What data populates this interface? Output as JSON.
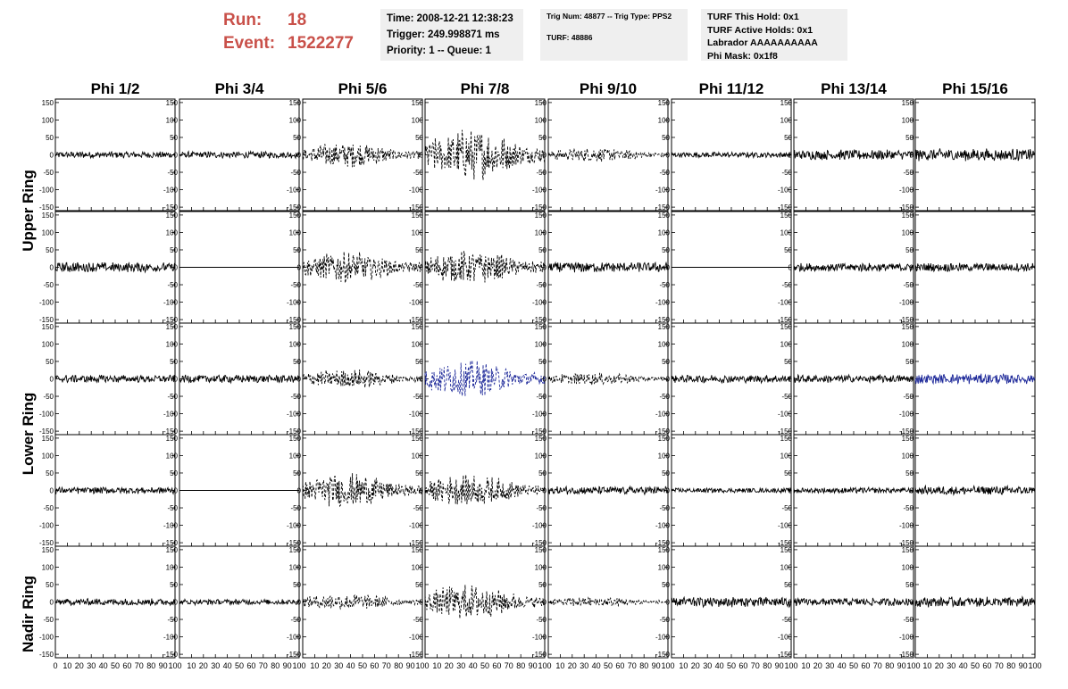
{
  "header": {
    "run_label": "Run:",
    "run_value": "18",
    "event_label": "Event:",
    "event_value": "1522277",
    "info1": [
      "Time: 2008-12-21 12:38:23",
      "Trigger: 249.998871 ms",
      "Priority: 1 -- Queue: 1"
    ],
    "info2": [
      "Trig Num: 48877 -- Trig Type: PPS2",
      "TURF: 48886"
    ],
    "info3": [
      "TURF This Hold: 0x1",
      "TURF Active Holds: 0x1",
      "Labrador AAAAAAAAAA",
      "Phi Mask: 0x1f8"
    ]
  },
  "colors": {
    "run_text": "#c9514a",
    "info_bg": "#efefef",
    "trace": "#000000",
    "highlight_trace": "#1f2a9a"
  },
  "chart_data": {
    "type": "line",
    "columns": [
      "Phi 1/2",
      "Phi 3/4",
      "Phi 5/6",
      "Phi 7/8",
      "Phi 9/10",
      "Phi 11/12",
      "Phi 13/14",
      "Phi 15/16"
    ],
    "ring_labels": [
      "Upper Ring",
      "Lower Ring",
      "Nadir Ring"
    ],
    "rows": 5,
    "xlim": [
      0,
      100
    ],
    "ylim": [
      -160,
      160
    ],
    "y_ticks": [
      -150,
      -100,
      -50,
      0,
      50,
      100,
      150
    ],
    "x_ticks": [
      0,
      10,
      20,
      30,
      40,
      50,
      60,
      70,
      80,
      90,
      100
    ],
    "x_tick_labels": [
      "0",
      "10",
      "20",
      "30",
      "40",
      "50",
      "60",
      "70",
      "80",
      "90",
      "100"
    ],
    "sample_step": 0.5,
    "traces": [
      [
        {
          "amp": 12,
          "env": "flat"
        },
        {
          "amp": 12,
          "env": "flat"
        },
        {
          "amp": 45,
          "env": "burst",
          "dashed": true
        },
        {
          "amp": 90,
          "env": "burst",
          "dashed": true
        },
        {
          "amp": 25,
          "env": "burst",
          "dashed": true
        },
        {
          "amp": 10,
          "env": "flat"
        },
        {
          "amp": 18,
          "env": "flat"
        },
        {
          "amp": 22,
          "env": "flat"
        }
      ],
      [
        {
          "amp": 18,
          "env": "flat"
        },
        {
          "amp": 0,
          "env": "flat"
        },
        {
          "amp": 55,
          "env": "burst",
          "dashed": true
        },
        {
          "amp": 60,
          "env": "burst",
          "dashed": true
        },
        {
          "amp": 18,
          "env": "flat"
        },
        {
          "amp": 0,
          "env": "flat"
        },
        {
          "amp": 15,
          "env": "flat"
        },
        {
          "amp": 15,
          "env": "flat"
        }
      ],
      [
        {
          "amp": 14,
          "env": "flat"
        },
        {
          "amp": 14,
          "env": "flat"
        },
        {
          "amp": 35,
          "env": "burst",
          "dashed": true
        },
        {
          "amp": 65,
          "env": "burst",
          "dashed": true,
          "color": "#1f2a9a"
        },
        {
          "amp": 22,
          "env": "burst",
          "dashed": true
        },
        {
          "amp": 14,
          "env": "flat"
        },
        {
          "amp": 14,
          "env": "flat"
        },
        {
          "amp": 18,
          "env": "flat",
          "color": "#1f2a9a"
        }
      ],
      [
        {
          "amp": 12,
          "env": "flat"
        },
        {
          "amp": 0,
          "env": "flat"
        },
        {
          "amp": 60,
          "env": "burst",
          "dashed": true
        },
        {
          "amp": 55,
          "env": "burst",
          "dashed": true
        },
        {
          "amp": 14,
          "env": "flat"
        },
        {
          "amp": 8,
          "env": "flat"
        },
        {
          "amp": 10,
          "env": "flat"
        },
        {
          "amp": 16,
          "env": "flat"
        }
      ],
      [
        {
          "amp": 12,
          "env": "flat"
        },
        {
          "amp": 10,
          "env": "flat"
        },
        {
          "amp": 30,
          "env": "burst",
          "dashed": true
        },
        {
          "amp": 60,
          "env": "burst",
          "dashed": true
        },
        {
          "amp": 18,
          "env": "burst",
          "dashed": true
        },
        {
          "amp": 18,
          "env": "flat"
        },
        {
          "amp": 14,
          "env": "flat"
        },
        {
          "amp": 18,
          "env": "flat"
        }
      ]
    ]
  }
}
